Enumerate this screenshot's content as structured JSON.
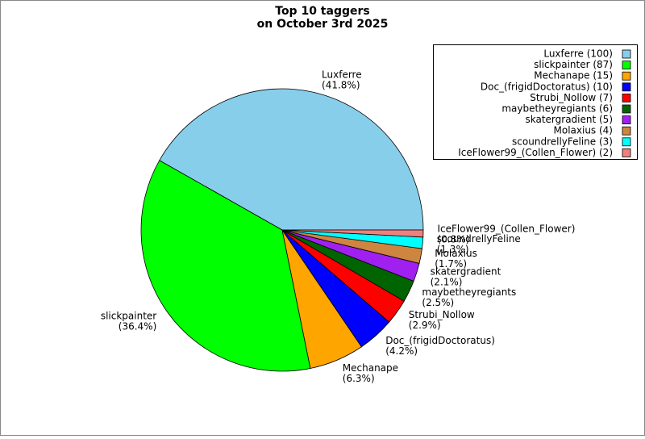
{
  "chart_data": {
    "type": "pie",
    "title": [
      "Top 10 taggers",
      "on October 3rd 2025"
    ],
    "categories": [
      "Luxferre",
      "slickpainter",
      "Mechanape",
      "Doc_(frigidDoctoratus)",
      "Strubi_Nollow",
      "maybetheyregiants",
      "skatergradient",
      "Molaxius",
      "scoundrellyFeline",
      "IceFlower99_(Collen_Flower)"
    ],
    "values": [
      41.8,
      36.4,
      6.3,
      4.2,
      2.9,
      2.5,
      2.1,
      1.7,
      1.3,
      0.8
    ],
    "value_labels": [
      "(41.8%)",
      "(36.4%)",
      "(6.3%)",
      "(4.2%)",
      "(2.9%)",
      "(2.5%)",
      "(2.1%)",
      "(1.7%)",
      "(1.3%)",
      "(0.8%)"
    ],
    "legend_labels": [
      "Luxferre (100)",
      "slickpainter (87)",
      "Mechanape (15)",
      "Doc_(frigidDoctoratus) (10)",
      "Strubi_Nollow (7)",
      "maybetheyregiants (6)",
      "skatergradient (5)",
      "Molaxius (4)",
      "scoundrellyFeline (3)",
      "IceFlower99_(Collen_Flower) (2)"
    ],
    "colors": [
      "#87ceeb",
      "#00ff00",
      "#ffa500",
      "#0000ff",
      "#ff0000",
      "#006400",
      "#a020f0",
      "#cd853f",
      "#00ffff",
      "#f08080"
    ],
    "legend": "upper right"
  }
}
